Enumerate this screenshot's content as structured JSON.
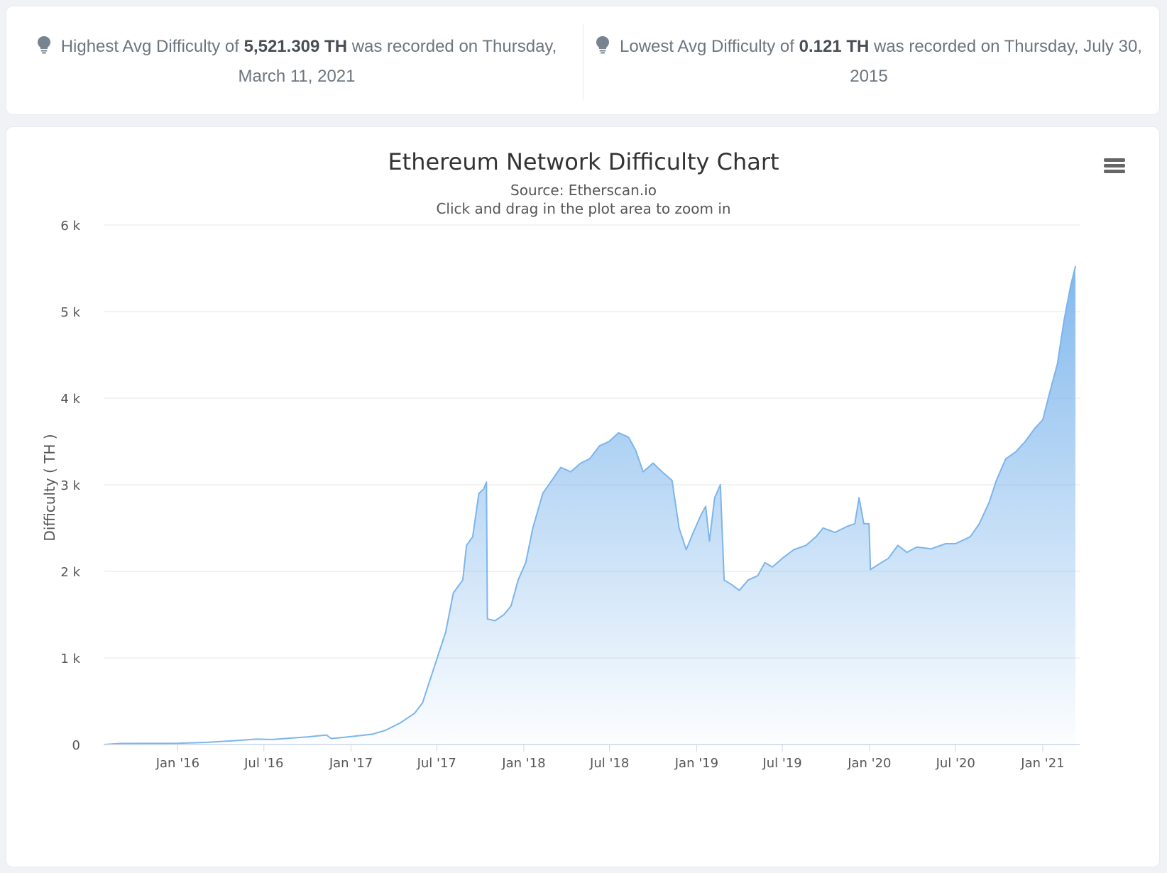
{
  "stats": {
    "high": {
      "prefix": "Highest Avg Difficulty of ",
      "value": "5,521.309 TH",
      "suffix": " was recorded on Thursday, March 11, 2021"
    },
    "low": {
      "prefix": "Lowest Avg Difficulty of ",
      "value": "0.121 TH",
      "suffix": " was recorded on Thursday, July 30, 2015"
    }
  },
  "colors": {
    "line": "#7cb5ec",
    "grid": "#e6e6e6",
    "icon": "#77838f"
  },
  "chart_data": {
    "type": "area",
    "title": "Ethereum Network Difficulty Chart",
    "subtitle": "Source: Etherscan.io",
    "hint": "Click and drag in the plot area to zoom in",
    "ylabel": "Difficulty ( TH )",
    "xlabel": "",
    "ylim": [
      0,
      6000
    ],
    "xlim": [
      "2015-07-30",
      "2021-03-20"
    ],
    "grid": true,
    "y_ticks": [
      {
        "value": 0,
        "label": "0"
      },
      {
        "value": 1000,
        "label": "1 k"
      },
      {
        "value": 2000,
        "label": "2 k"
      },
      {
        "value": 3000,
        "label": "3 k"
      },
      {
        "value": 4000,
        "label": "4 k"
      },
      {
        "value": 5000,
        "label": "5 k"
      },
      {
        "value": 6000,
        "label": "6 k"
      }
    ],
    "x_ticks": [
      {
        "date": "2016-01-01",
        "label": "Jan '16"
      },
      {
        "date": "2016-07-01",
        "label": "Jul '16"
      },
      {
        "date": "2017-01-01",
        "label": "Jan '17"
      },
      {
        "date": "2017-07-01",
        "label": "Jul '17"
      },
      {
        "date": "2018-01-01",
        "label": "Jan '18"
      },
      {
        "date": "2018-07-01",
        "label": "Jul '18"
      },
      {
        "date": "2019-01-01",
        "label": "Jan '19"
      },
      {
        "date": "2019-07-01",
        "label": "Jul '19"
      },
      {
        "date": "2020-01-01",
        "label": "Jan '20"
      },
      {
        "date": "2020-07-01",
        "label": "Jul '20"
      },
      {
        "date": "2021-01-01",
        "label": "Jan '21"
      }
    ],
    "series": [
      {
        "name": "",
        "points": [
          [
            "2015-07-30",
            0.121
          ],
          [
            "2015-09-01",
            12
          ],
          [
            "2015-11-01",
            13
          ],
          [
            "2016-01-01",
            14
          ],
          [
            "2016-03-01",
            25
          ],
          [
            "2016-05-01",
            45
          ],
          [
            "2016-06-15",
            62
          ],
          [
            "2016-07-20",
            58
          ],
          [
            "2016-08-15",
            70
          ],
          [
            "2016-10-01",
            88
          ],
          [
            "2016-11-10",
            110
          ],
          [
            "2016-11-20",
            70
          ],
          [
            "2016-12-15",
            82
          ],
          [
            "2017-01-15",
            100
          ],
          [
            "2017-02-15",
            120
          ],
          [
            "2017-03-15",
            165
          ],
          [
            "2017-04-15",
            250
          ],
          [
            "2017-05-15",
            360
          ],
          [
            "2017-06-01",
            480
          ],
          [
            "2017-06-20",
            800
          ],
          [
            "2017-07-05",
            1050
          ],
          [
            "2017-07-20",
            1300
          ],
          [
            "2017-08-05",
            1750
          ],
          [
            "2017-08-25",
            1900
          ],
          [
            "2017-09-02",
            2300
          ],
          [
            "2017-09-15",
            2400
          ],
          [
            "2017-09-28",
            2900
          ],
          [
            "2017-10-08",
            2950
          ],
          [
            "2017-10-14",
            3030
          ],
          [
            "2017-10-16",
            1450
          ],
          [
            "2017-11-01",
            1430
          ],
          [
            "2017-11-20",
            1500
          ],
          [
            "2017-12-05",
            1600
          ],
          [
            "2017-12-20",
            1900
          ],
          [
            "2018-01-05",
            2100
          ],
          [
            "2018-01-20",
            2500
          ],
          [
            "2018-02-10",
            2900
          ],
          [
            "2018-03-01",
            3050
          ],
          [
            "2018-03-20",
            3200
          ],
          [
            "2018-04-10",
            3150
          ],
          [
            "2018-05-01",
            3250
          ],
          [
            "2018-05-20",
            3300
          ],
          [
            "2018-06-10",
            3450
          ],
          [
            "2018-06-30",
            3500
          ],
          [
            "2018-07-20",
            3600
          ],
          [
            "2018-08-10",
            3550
          ],
          [
            "2018-08-25",
            3400
          ],
          [
            "2018-09-10",
            3150
          ],
          [
            "2018-10-01",
            3250
          ],
          [
            "2018-10-20",
            3150
          ],
          [
            "2018-11-10",
            3050
          ],
          [
            "2018-11-25",
            2500
          ],
          [
            "2018-12-10",
            2250
          ],
          [
            "2018-12-25",
            2450
          ],
          [
            "2019-01-10",
            2650
          ],
          [
            "2019-01-20",
            2750
          ],
          [
            "2019-01-28",
            2350
          ],
          [
            "2019-02-08",
            2850
          ],
          [
            "2019-02-20",
            3000
          ],
          [
            "2019-02-28",
            1900
          ],
          [
            "2019-03-15",
            1850
          ],
          [
            "2019-04-01",
            1780
          ],
          [
            "2019-04-20",
            1900
          ],
          [
            "2019-05-10",
            1950
          ],
          [
            "2019-05-25",
            2100
          ],
          [
            "2019-06-10",
            2050
          ],
          [
            "2019-07-01",
            2150
          ],
          [
            "2019-07-25",
            2250
          ],
          [
            "2019-08-20",
            2300
          ],
          [
            "2019-09-10",
            2400
          ],
          [
            "2019-09-25",
            2500
          ],
          [
            "2019-10-20",
            2450
          ],
          [
            "2019-11-15",
            2520
          ],
          [
            "2019-12-01",
            2550
          ],
          [
            "2019-12-10",
            2850
          ],
          [
            "2019-12-20",
            2550
          ],
          [
            "2019-12-31",
            2550
          ],
          [
            "2020-01-03",
            2020
          ],
          [
            "2020-01-20",
            2080
          ],
          [
            "2020-02-10",
            2150
          ],
          [
            "2020-03-01",
            2300
          ],
          [
            "2020-03-20",
            2220
          ],
          [
            "2020-04-10",
            2280
          ],
          [
            "2020-05-10",
            2260
          ],
          [
            "2020-06-10",
            2320
          ],
          [
            "2020-07-01",
            2320
          ],
          [
            "2020-08-01",
            2400
          ],
          [
            "2020-08-20",
            2550
          ],
          [
            "2020-09-10",
            2800
          ],
          [
            "2020-09-25",
            3050
          ],
          [
            "2020-10-15",
            3300
          ],
          [
            "2020-11-05",
            3380
          ],
          [
            "2020-11-25",
            3500
          ],
          [
            "2020-12-15",
            3650
          ],
          [
            "2021-01-01",
            3750
          ],
          [
            "2021-01-15",
            4050
          ],
          [
            "2021-02-01",
            4400
          ],
          [
            "2021-02-15",
            4900
          ],
          [
            "2021-03-01",
            5300
          ],
          [
            "2021-03-11",
            5521.309
          ]
        ]
      }
    ]
  }
}
